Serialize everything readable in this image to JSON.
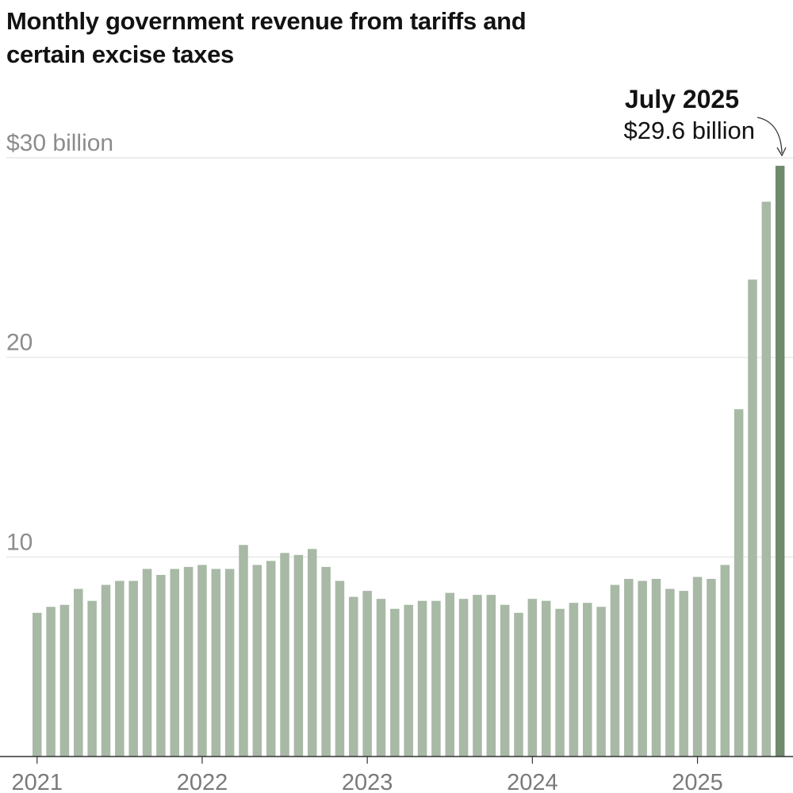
{
  "title": "Monthly government revenue from tariffs and certain excise taxes",
  "colors": {
    "bar": "#a8b9a6",
    "highlight": "#6f8a6c",
    "grid": "#e2e2e2",
    "axis": "#333333"
  },
  "chart_data": {
    "type": "bar",
    "title": "Monthly government revenue from tariffs and certain excise taxes",
    "xlabel": "",
    "ylabel": "",
    "ylim": [
      0,
      30
    ],
    "grid": true,
    "y_ticks": [
      {
        "value": 10,
        "label": "10"
      },
      {
        "value": 20,
        "label": "20"
      },
      {
        "value": 30,
        "label": "$30 billion"
      }
    ],
    "x_tick_labels": [
      {
        "index": 0,
        "label": "2021"
      },
      {
        "index": 12,
        "label": "2022"
      },
      {
        "index": 24,
        "label": "2023"
      },
      {
        "index": 36,
        "label": "2024"
      },
      {
        "index": 48,
        "label": "2025"
      }
    ],
    "categories": [
      "Jan 2021",
      "Feb 2021",
      "Mar 2021",
      "Apr 2021",
      "May 2021",
      "Jun 2021",
      "Jul 2021",
      "Aug 2021",
      "Sep 2021",
      "Oct 2021",
      "Nov 2021",
      "Dec 2021",
      "Jan 2022",
      "Feb 2022",
      "Mar 2022",
      "Apr 2022",
      "May 2022",
      "Jun 2022",
      "Jul 2022",
      "Aug 2022",
      "Sep 2022",
      "Oct 2022",
      "Nov 2022",
      "Dec 2022",
      "Jan 2023",
      "Feb 2023",
      "Mar 2023",
      "Apr 2023",
      "May 2023",
      "Jun 2023",
      "Jul 2023",
      "Aug 2023",
      "Sep 2023",
      "Oct 2023",
      "Nov 2023",
      "Dec 2023",
      "Jan 2024",
      "Feb 2024",
      "Mar 2024",
      "Apr 2024",
      "May 2024",
      "Jun 2024",
      "Jul 2024",
      "Aug 2024",
      "Sep 2024",
      "Oct 2024",
      "Nov 2024",
      "Dec 2024",
      "Jan 2025",
      "Feb 2025",
      "Mar 2025",
      "Apr 2025",
      "May 2025",
      "Jun 2025",
      "Jul 2025"
    ],
    "values": [
      7.2,
      7.5,
      7.6,
      8.4,
      7.8,
      8.6,
      8.8,
      8.8,
      9.4,
      9.1,
      9.4,
      9.5,
      9.6,
      9.4,
      9.4,
      10.6,
      9.6,
      9.8,
      10.2,
      10.1,
      10.4,
      9.5,
      8.8,
      8.0,
      8.3,
      7.9,
      7.4,
      7.6,
      7.8,
      7.8,
      8.2,
      7.9,
      8.1,
      8.1,
      7.6,
      7.2,
      7.9,
      7.8,
      7.4,
      7.7,
      7.7,
      7.5,
      8.6,
      8.9,
      8.8,
      8.9,
      8.4,
      8.3,
      9.0,
      8.9,
      9.6,
      17.4,
      23.9,
      27.8,
      29.6
    ],
    "highlight_index": 54,
    "annotation": {
      "title": "July 2025",
      "value": "$29.6 billion"
    }
  }
}
